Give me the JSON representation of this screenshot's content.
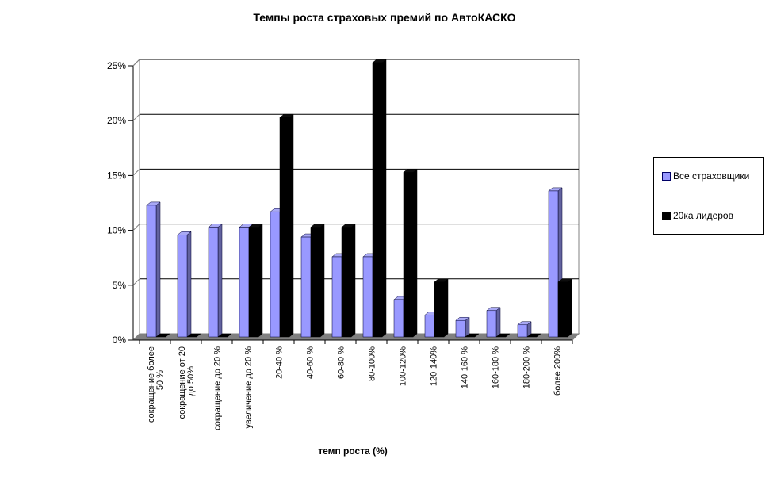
{
  "chart_data": {
    "type": "bar",
    "title": "Темпы роста страховых премий по АвтоКАСКО",
    "xlabel": "темп роста (%)",
    "ylabel": "",
    "ylim": [
      0,
      25
    ],
    "yticks": [
      0,
      5,
      10,
      15,
      20,
      25
    ],
    "ytick_suffix": "%",
    "grid": true,
    "legend_position": "right",
    "style": "excel-3d-column",
    "categories": [
      "сокращение более 50 %",
      "сокращение от 20 до 50%",
      "сокращение до 20 %",
      "увеличение до 20 %",
      "20-40 %",
      "40-60 %",
      "60-80 %",
      "80-100%",
      "100-120%",
      "120-140%",
      "140-160 %",
      "160-180 %",
      "180-200 %",
      "более 200%"
    ],
    "category_label_lines": [
      [
        "сокращение более",
        "50 %"
      ],
      [
        "сокращение от 20",
        "до 50%"
      ],
      [
        "сокращение до 20 %"
      ],
      [
        "увеличение до 20 %"
      ],
      [
        "20-40 %"
      ],
      [
        "40-60 %"
      ],
      [
        "60-80 %"
      ],
      [
        "80-100%"
      ],
      [
        "100-120%"
      ],
      [
        "120-140%"
      ],
      [
        "140-160 %"
      ],
      [
        "160-180 %"
      ],
      [
        "180-200 %"
      ],
      [
        "более 200%"
      ]
    ],
    "series": [
      {
        "name": "Все страховщики",
        "color": "#9999FF",
        "color_top": "#A9A9F5",
        "color_side": "#62629E",
        "edge_color": "#000033",
        "values": [
          12.0,
          9.3,
          10.0,
          10.0,
          11.4,
          9.1,
          7.3,
          7.3,
          3.4,
          2.0,
          1.5,
          2.4,
          1.1,
          13.3
        ]
      },
      {
        "name": "20ка лидеров",
        "color": "#000000",
        "color_top": "#0d0d0d",
        "color_side": "#000000",
        "edge_color": "#000000",
        "values": [
          0,
          0,
          0,
          10.0,
          20.0,
          10.0,
          10.0,
          25.0,
          15.0,
          5.0,
          0,
          0,
          0,
          5.0
        ]
      }
    ],
    "colors": {
      "plot_background": "#ffffff",
      "wall_outline": "#808080",
      "floor": "#808080",
      "gridline": "#000000",
      "axis_line": "#000000"
    }
  }
}
